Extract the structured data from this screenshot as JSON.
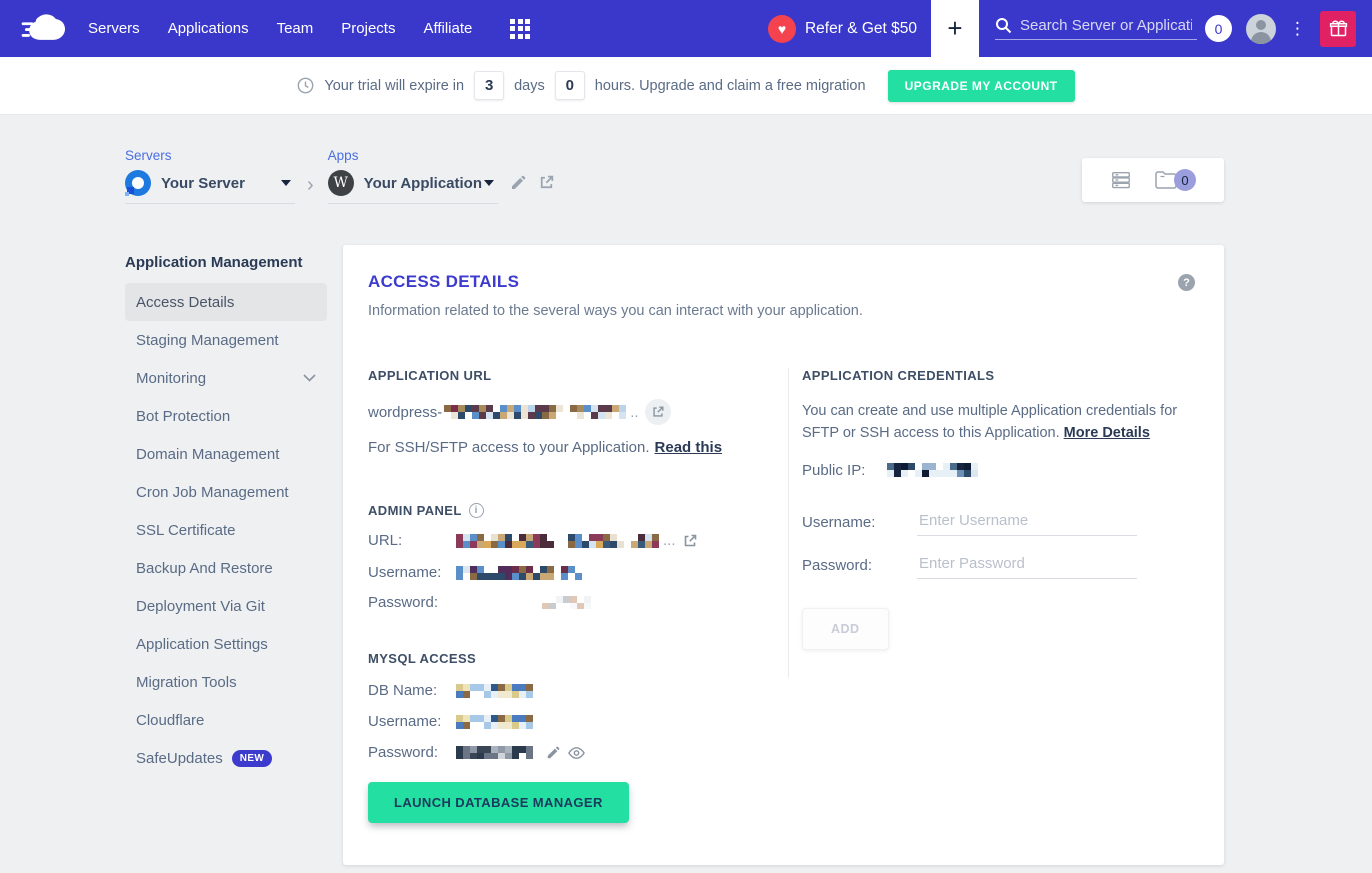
{
  "topnav": {
    "items": [
      "Servers",
      "Applications",
      "Team",
      "Projects",
      "Affiliate"
    ],
    "refer_label": "Refer & Get $50",
    "search_placeholder": "Search Server or Application",
    "search_count": "0"
  },
  "glyphs": {
    "heart": "♥",
    "plus": "+",
    "kebab": "⋮",
    "chevron_right": "›",
    "help": "?",
    "info": "i",
    "wordpress": "W"
  },
  "trial_banner": {
    "prefix": "Your trial will expire in",
    "days": "3",
    "days_unit": "days",
    "hours": "0",
    "suffix": "hours. Upgrade and claim a free migration",
    "cta": "UPGRADE MY ACCOUNT"
  },
  "selectors": {
    "servers_label": "Servers",
    "server_name": "Your Server",
    "apps_label": "Apps",
    "app_name": "Your Application"
  },
  "workspace": {
    "folder_count": "0"
  },
  "sidebar": {
    "heading": "Application Management",
    "items": [
      {
        "label": "Access Details",
        "active": true
      },
      {
        "label": "Staging Management"
      },
      {
        "label": "Monitoring",
        "chevron": true
      },
      {
        "label": "Bot Protection"
      },
      {
        "label": "Domain Management"
      },
      {
        "label": "Cron Job Management"
      },
      {
        "label": "SSL Certificate"
      },
      {
        "label": "Backup And Restore"
      },
      {
        "label": "Deployment Via Git"
      },
      {
        "label": "Application Settings"
      },
      {
        "label": "Migration Tools"
      },
      {
        "label": "Cloudflare"
      },
      {
        "label": "SafeUpdates",
        "badge": "NEW"
      }
    ]
  },
  "main": {
    "title": "ACCESS DETAILS",
    "subtitle": "Information related to the several ways you can interact with your application.",
    "application_url": {
      "heading": "APPLICATION URL",
      "url_prefix": "wordpress-",
      "url_ellipsis": "..",
      "ssh_text": "For SSH/SFTP access to your Application.",
      "ssh_link": "Read this"
    },
    "admin_panel": {
      "heading": "ADMIN PANEL",
      "url_label": "URL:",
      "url_ellipsis": "...",
      "username_label": "Username:",
      "password_label": "Password:"
    },
    "mysql": {
      "heading": "MYSQL ACCESS",
      "db_label": "DB Name:",
      "username_label": "Username:",
      "password_label": "Password:",
      "launch_button": "LAUNCH DATABASE MANAGER"
    },
    "credentials": {
      "heading": "APPLICATION CREDENTIALS",
      "description": "You can create and use multiple Application credentials for SFTP or SSH access to this Application.",
      "more_link": "More Details",
      "public_ip_label": "Public IP:",
      "username_label": "Username:",
      "username_placeholder": "Enter Username",
      "password_label": "Password:",
      "password_placeholder": "Enter Password",
      "add_button": "ADD"
    }
  },
  "colors": {
    "nav_blue": "#3a38cb",
    "accent_green": "#23dfa1",
    "gift_crimson": "#e02264",
    "heart_red": "#f4434e",
    "title_blue": "#3d3bcd",
    "badge_purple": "#9a9edd",
    "new_badge_blue": "#3d3bcd"
  },
  "redaction_palettes": {
    "app_url": [
      "#8a6a45",
      "#5b3a4a",
      "#2d4a6b",
      "#c9a876",
      "#ece4d4",
      "#5b8fc9",
      "#d5e3f0",
      "#7b2d4a",
      "#a88b5a",
      "#bcd4ea"
    ],
    "admin_url": [
      "#8a6a45",
      "#4a2c3a",
      "#2d4a6b",
      "#c9a876",
      "#e8e0d0",
      "#5b8fc9",
      "#d5e3f0",
      "#8b3a5a",
      "#3a5a7b",
      "#d9a85a"
    ],
    "admin_user": [
      "#2d4a6b",
      "#5b3a6b",
      "#6b2d4a",
      "#c9a876",
      "#5b8fc9",
      "#dbe6ef",
      "#8a6a45",
      "#512d5b"
    ],
    "admin_pass": [
      "#d8dce0",
      "#eadfd6",
      "#f2f3f5",
      "#e0c8b8",
      "#c8ccd0",
      "#f7f8f9"
    ],
    "public_ip": [
      "#16243f",
      "#2d4a6b",
      "#4a6b8a",
      "#9bb5d0",
      "#dbe6ef",
      "#0f1b33",
      "#6b8fb5",
      "#e8f0f7"
    ],
    "db": [
      "#4a7bbf",
      "#d9c98a",
      "#efe3b8",
      "#8a6a45",
      "#a8c8e8",
      "#f0e8cf",
      "#2d5a8a",
      "#e8f0f7"
    ],
    "mysql_pass": [
      "#3a4555",
      "#6b7585",
      "#aab2bd",
      "#d0d5da",
      "#2c3a4e",
      "#8e98a6"
    ]
  }
}
